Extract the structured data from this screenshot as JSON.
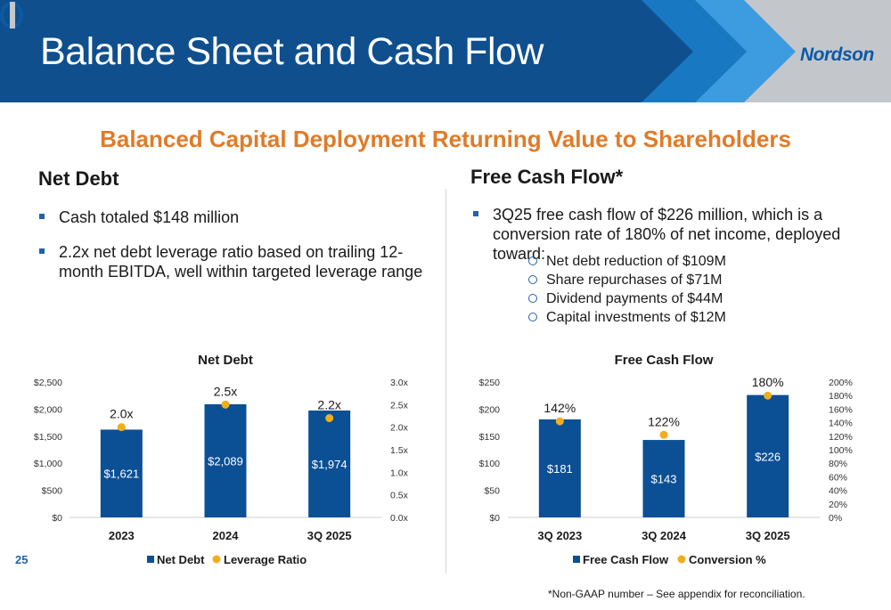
{
  "header": {
    "title": "Balance Sheet and Cash Flow",
    "logo_text": "Nordson"
  },
  "subtitle": "Balanced Capital Deployment Returning Value to Shareholders",
  "net_debt_section": {
    "heading": "Net Debt",
    "bullets": [
      "Cash totaled $148 million",
      "2.2x net debt leverage ratio based on trailing 12-month EBITDA, well within targeted leverage range"
    ]
  },
  "fcf_section": {
    "heading": "Free Cash Flow*",
    "bullets": [
      "3Q25 free cash flow of $226 million, which is a conversion rate of 180% of net income, deployed toward:"
    ],
    "sub_bullets": [
      "Net debt reduction of $109M",
      "Share repurchases of $71M",
      "Dividend payments of $44M",
      "Capital investments of $12M"
    ]
  },
  "page_number": "25",
  "footnote": "*Non-GAAP number – See appendix for reconciliation.",
  "colors": {
    "navy": "#0f4f8e",
    "bar": "#0b4f95",
    "accent_orange": "#e07b28",
    "dot": "#f0ae1e",
    "gray": "#c3c7cc"
  },
  "chart_data": [
    {
      "type": "bar",
      "title": "Net Debt",
      "categories": [
        "2023",
        "2024",
        "3Q 2025"
      ],
      "series": [
        {
          "name": "Net Debt",
          "axis": "left",
          "values": [
            1621,
            2089,
            1974
          ],
          "labels": [
            "$1,621",
            "$2,089",
            "$1,974"
          ]
        },
        {
          "name": "Leverage Ratio",
          "axis": "right",
          "values": [
            2.0,
            2.5,
            2.2
          ],
          "labels": [
            "2.0x",
            "2.5x",
            "2.2x"
          ],
          "marker": "dot"
        }
      ],
      "ylim": [
        0,
        2500
      ],
      "y_ticks": [
        "$0",
        "$500",
        "$1,000",
        "$1,500",
        "$2,000",
        "$2,500"
      ],
      "y2lim": [
        0,
        3.0
      ],
      "y2_ticks": [
        "0.0x",
        "0.5x",
        "1.0x",
        "1.5x",
        "2.0x",
        "2.5x",
        "3.0x"
      ],
      "legend": "bottom",
      "grid": false
    },
    {
      "type": "bar",
      "title": "Free Cash Flow",
      "categories": [
        "3Q 2023",
        "3Q 2024",
        "3Q 2025"
      ],
      "series": [
        {
          "name": "Free Cash Flow",
          "axis": "left",
          "values": [
            181,
            143,
            226
          ],
          "labels": [
            "$181",
            "$143",
            "$226"
          ]
        },
        {
          "name": "Conversion %",
          "axis": "right",
          "values": [
            142,
            122,
            180
          ],
          "labels": [
            "142%",
            "122%",
            "180%"
          ],
          "marker": "dot"
        }
      ],
      "ylim": [
        0,
        250
      ],
      "y_ticks": [
        "$0",
        "$50",
        "$100",
        "$150",
        "$200",
        "$250"
      ],
      "y2lim": [
        0,
        200
      ],
      "y2_ticks": [
        "0%",
        "20%",
        "40%",
        "60%",
        "80%",
        "100%",
        "120%",
        "140%",
        "160%",
        "180%",
        "200%"
      ],
      "legend": "bottom",
      "grid": false
    }
  ]
}
